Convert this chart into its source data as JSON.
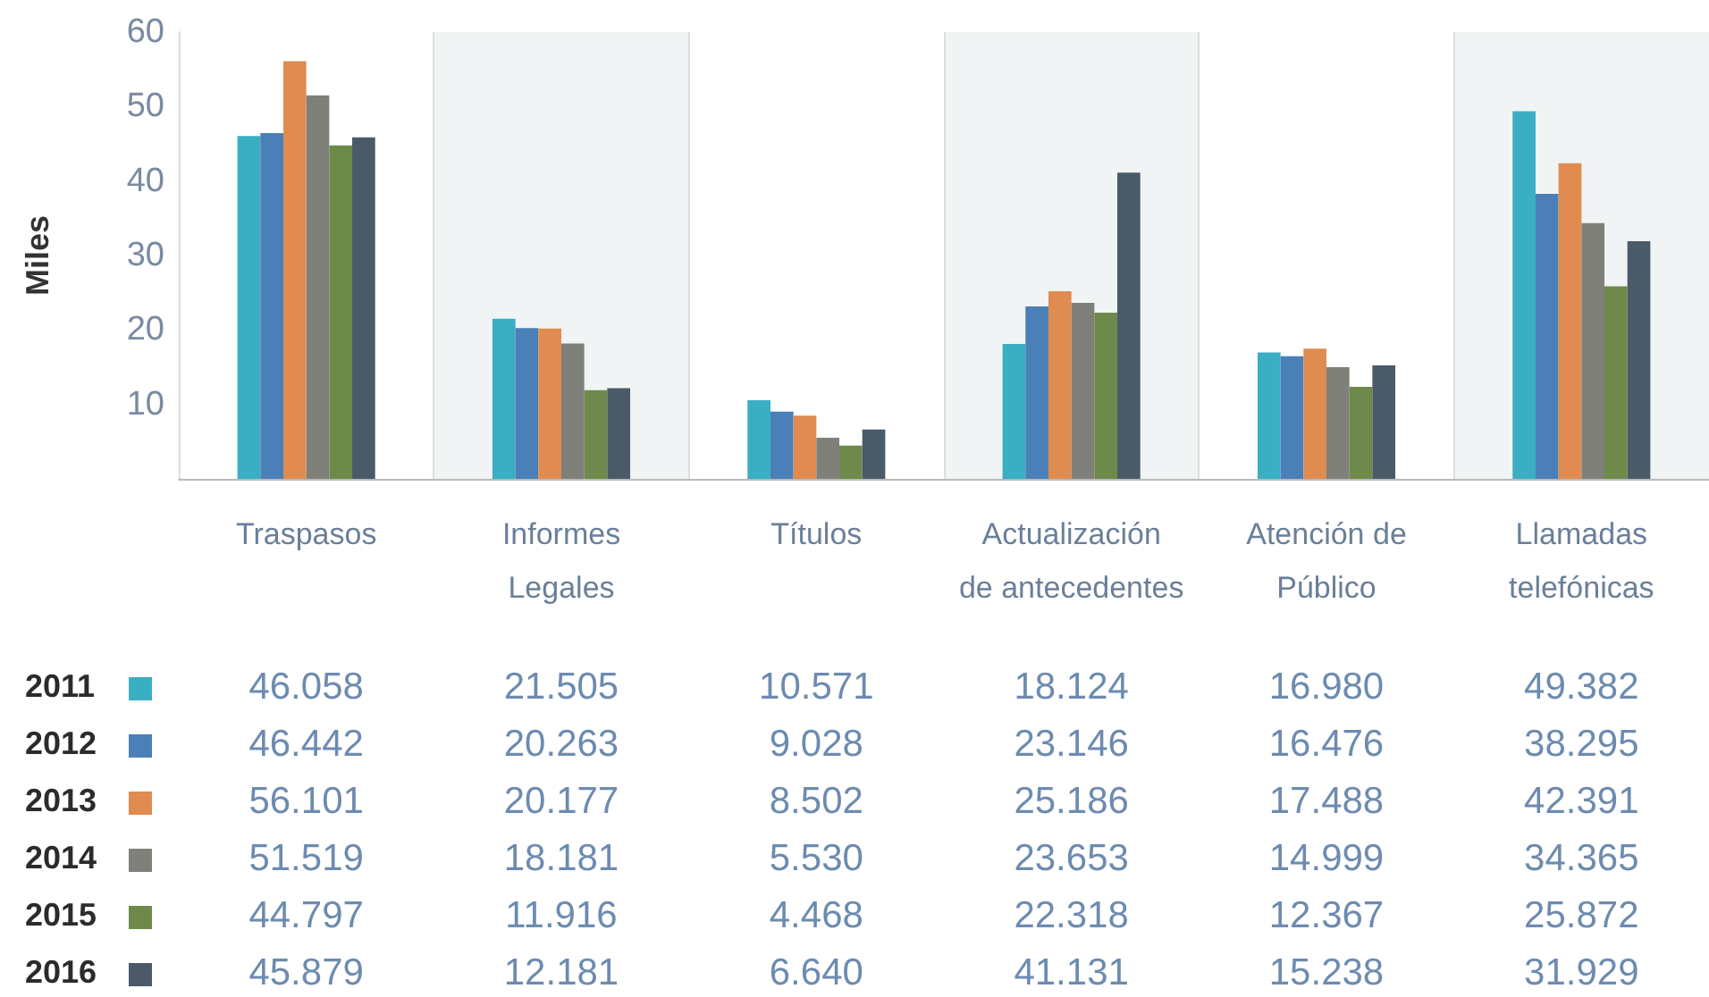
{
  "chart_data": {
    "type": "bar",
    "ylabel": "Miles",
    "categories": [
      "Traspasos",
      "Informes\nLegales",
      "Títulos",
      "Actualización\nde antecedentes",
      "Atención de\nPúblico",
      "Llamadas\ntelefónicas"
    ],
    "series": [
      {
        "name": "2011",
        "color": "#3aaec3",
        "values": [
          46.058,
          21.505,
          10.571,
          18.124,
          16.98,
          49.382
        ],
        "value_labels": [
          "46.058",
          "21.505",
          "10.571",
          "18.124",
          "16.980",
          "49.382"
        ]
      },
      {
        "name": "2012",
        "color": "#4a7fb8",
        "values": [
          46.442,
          20.263,
          9.028,
          23.146,
          16.476,
          38.295
        ],
        "value_labels": [
          "46.442",
          "20.263",
          "9.028",
          "23.146",
          "16.476",
          "38.295"
        ]
      },
      {
        "name": "2013",
        "color": "#e08c50",
        "values": [
          56.101,
          20.177,
          8.502,
          25.186,
          17.488,
          42.391
        ],
        "value_labels": [
          "56.101",
          "20.177",
          "8.502",
          "25.186",
          "17.488",
          "42.391"
        ]
      },
      {
        "name": "2014",
        "color": "#7f807a",
        "values": [
          51.519,
          18.181,
          5.53,
          23.653,
          14.999,
          34.365
        ],
        "value_labels": [
          "51.519",
          "18.181",
          "5.530",
          "23.653",
          "14.999",
          "34.365"
        ]
      },
      {
        "name": "2015",
        "color": "#6e8a4a",
        "values": [
          44.797,
          11.916,
          4.468,
          22.318,
          12.367,
          25.872
        ],
        "value_labels": [
          "44.797",
          "11.916",
          "4.468",
          "22.318",
          "12.367",
          "25.872"
        ]
      },
      {
        "name": "2016",
        "color": "#4a5a68",
        "values": [
          45.879,
          12.181,
          6.64,
          41.131,
          15.238,
          31.929
        ],
        "value_labels": [
          "45.879",
          "12.181",
          "6.640",
          "41.131",
          "15.238",
          "31.929"
        ]
      }
    ],
    "ylim": [
      0,
      60
    ],
    "yticks": [
      10,
      20,
      30,
      40,
      50,
      60
    ],
    "grid": false,
    "legend": "bottom"
  }
}
